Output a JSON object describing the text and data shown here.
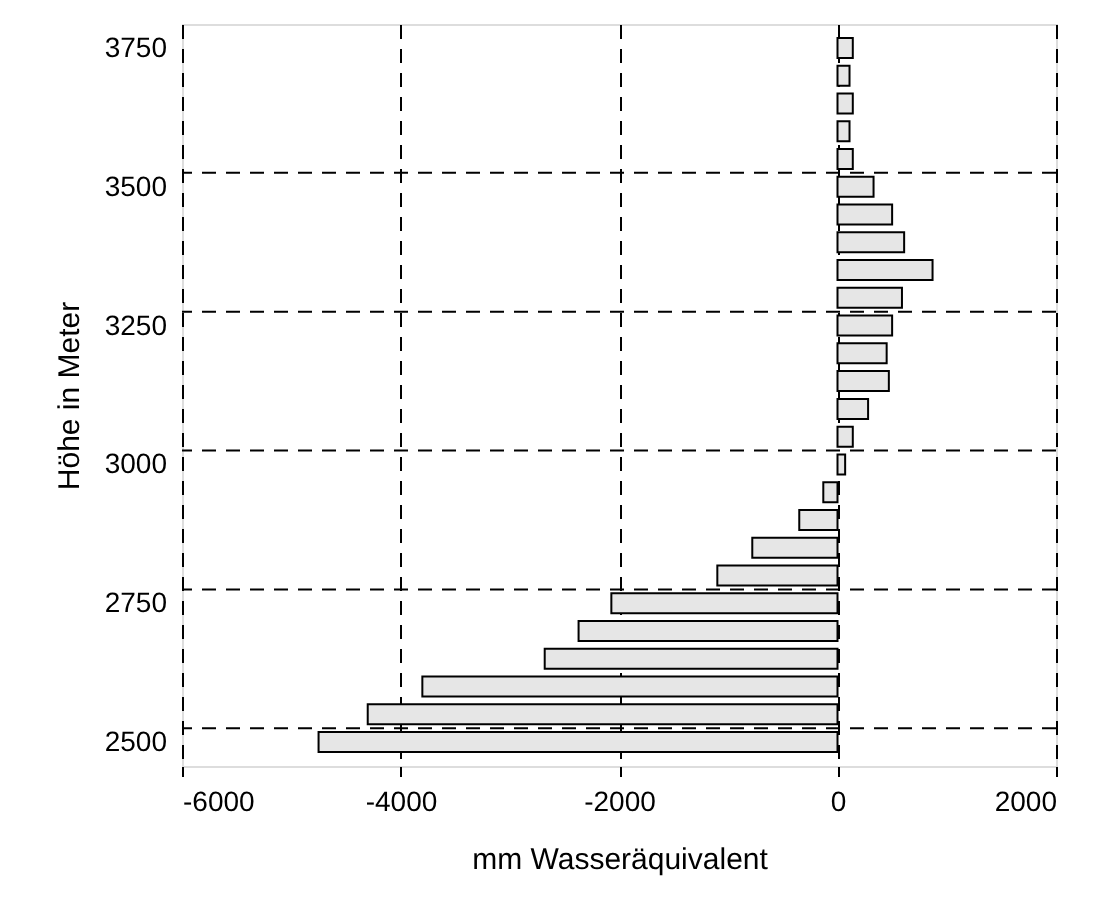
{
  "chart_data": {
    "type": "bar",
    "orientation": "horizontal",
    "xlabel": "mm Wasseräquivalent",
    "ylabel": "Höhe in Meter",
    "categories": [
      "3750",
      null,
      null,
      null,
      null,
      "3500",
      null,
      null,
      null,
      null,
      "3250",
      null,
      null,
      null,
      null,
      "3000",
      null,
      null,
      null,
      null,
      "2750",
      null,
      null,
      null,
      null,
      "2500"
    ],
    "values": [
      140,
      110,
      140,
      110,
      140,
      330,
      500,
      610,
      870,
      590,
      500,
      450,
      470,
      280,
      140,
      70,
      -130,
      -350,
      -780,
      -1100,
      -2070,
      -2370,
      -2680,
      -3800,
      -4300,
      -4750
    ],
    "color": "#e6e6e6",
    "xlim": [
      -6000,
      2000
    ],
    "xticks": [
      -6000,
      -4000,
      -2000,
      0,
      2000
    ],
    "grid": true
  }
}
